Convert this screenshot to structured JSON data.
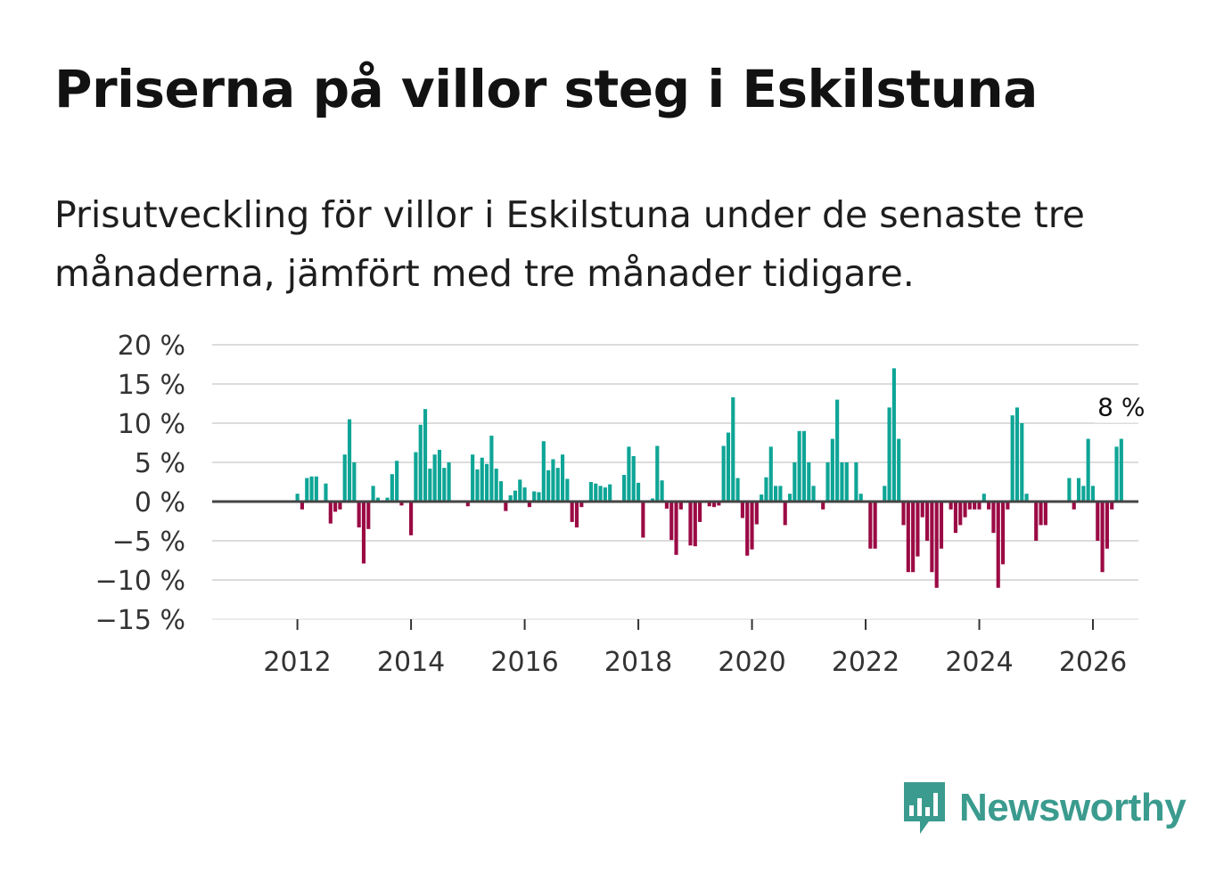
{
  "header": {
    "title": "Priserna på villor steg i Eskilstuna",
    "subtitle": "Prisutveckling för villor i Eskilstuna under de senaste tre månaderna, jämfört med tre månader tidigare."
  },
  "branding": {
    "name": "Newsworthy"
  },
  "colors": {
    "positive": "#0ea596",
    "negative": "#9b0a44",
    "grid": "#dcdcdc",
    "zero": "#444444",
    "brand": "#3a9b8e"
  },
  "chart_data": {
    "type": "bar",
    "x_start": 2011.25,
    "x_step": 0.08333,
    "values": [
      0,
      0,
      0,
      0,
      0,
      0,
      0,
      0,
      0,
      1,
      -1,
      3,
      3.2,
      3.2,
      0,
      2.3,
      -2.8,
      -1.3,
      -1,
      6,
      10.5,
      5,
      -3.3,
      -7.9,
      -3.5,
      2,
      0.5,
      0,
      0.5,
      3.5,
      5.2,
      -0.5,
      0,
      -4.3,
      6.3,
      9.8,
      11.8,
      4.2,
      6,
      6.6,
      4.3,
      5,
      0,
      0,
      0,
      -0.6,
      6,
      4.1,
      5.6,
      4.8,
      8.4,
      4.2,
      2.6,
      -1.2,
      0.8,
      1.4,
      2.8,
      1.8,
      -0.7,
      1.3,
      1.2,
      7.7,
      4,
      5.4,
      4.3,
      6,
      2.9,
      -2.6,
      -3.3,
      -0.7,
      0,
      2.5,
      2.3,
      2,
      1.8,
      2.2,
      0,
      0,
      3.4,
      7,
      5.8,
      2.4,
      -4.6,
      0,
      0.4,
      7.1,
      2.7,
      -0.9,
      -4.9,
      -6.8,
      -1,
      0,
      -5.6,
      -5.7,
      -2.6,
      0,
      -0.6,
      -0.7,
      -0.5,
      7.1,
      8.8,
      13.3,
      3,
      -2.1,
      -6.9,
      -6.1,
      -2.9,
      0.9,
      3.1,
      7,
      2,
      2,
      -3,
      1,
      5,
      9,
      9,
      5,
      2,
      0,
      -1,
      5,
      8,
      13,
      5,
      5,
      0,
      5,
      1,
      0,
      -6,
      -6,
      0,
      2,
      12,
      17,
      8,
      -3,
      -9,
      -9,
      -7,
      -2,
      -5,
      -9,
      -11,
      -6,
      0,
      -1,
      -4,
      -3,
      -2,
      -1,
      -1,
      -1,
      1,
      -1,
      -4,
      -11,
      -8,
      -1,
      11,
      12,
      10,
      1,
      0,
      -5,
      -3,
      -3,
      0,
      0,
      0,
      0,
      3,
      -1,
      3,
      2,
      8,
      2,
      -5,
      -9,
      -6,
      -1,
      7,
      8
    ],
    "x_ticks": [
      2012,
      2014,
      2016,
      2018,
      2020,
      2022,
      2024,
      2026
    ],
    "x_tick_labels": [
      "2012",
      "2014",
      "2016",
      "2018",
      "2020",
      "2022",
      "2024",
      "2026"
    ],
    "y_ticks": [
      20,
      15,
      10,
      5,
      0,
      -5,
      -10,
      -15
    ],
    "y_tick_labels": [
      "20 %",
      "15 %",
      "10 %",
      "5 %",
      "0 %",
      "−5 %",
      "−10 %",
      "−15 %"
    ],
    "ylim": [
      -15,
      20
    ],
    "xlim": [
      2010.5,
      2026.8
    ],
    "annotation": {
      "label": "8 %",
      "value": 8
    },
    "xlabel": "",
    "ylabel": ""
  }
}
